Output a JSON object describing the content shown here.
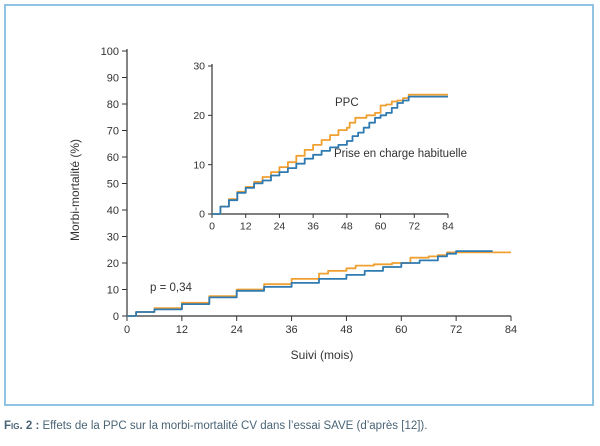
{
  "caption": {
    "label": "Fig. 2 :",
    "text": " Effets de la PPC sur la morbi-mortalité CV dans l’essai SAVE (d’après [12])."
  },
  "colors": {
    "ppc": "#f0a030",
    "usual": "#2f7ab0",
    "axis": "#333333",
    "frame": "#8fc2e3"
  },
  "chart_data": [
    {
      "type": "line",
      "ylabel": "Morbi-mortalité (%)",
      "xlabel": "Suivi (mois)",
      "xlim": [
        0,
        84
      ],
      "ylim": [
        0,
        100
      ],
      "xticks": [
        "0",
        "12",
        "24",
        "36",
        "48",
        "60",
        "72",
        "84"
      ],
      "yticks": [
        "0",
        "10",
        "20",
        "30",
        "40",
        "50",
        "60",
        "70",
        "80",
        "90",
        "100"
      ],
      "annotation": "p = 0,34",
      "series": [
        {
          "name": "PPC",
          "color": "#f0a030",
          "points": [
            [
              0,
              0
            ],
            [
              2,
              1.5
            ],
            [
              6,
              3
            ],
            [
              12,
              5
            ],
            [
              18,
              7.5
            ],
            [
              24,
              10
            ],
            [
              30,
              12
            ],
            [
              36,
              14
            ],
            [
              42,
              16
            ],
            [
              44,
              17
            ],
            [
              48,
              18
            ],
            [
              50,
              19
            ],
            [
              54,
              19.5
            ],
            [
              58,
              20
            ],
            [
              62,
              22
            ],
            [
              66,
              22.5
            ],
            [
              68,
              23
            ],
            [
              70,
              24
            ],
            [
              76,
              24
            ],
            [
              80,
              24
            ],
            [
              84,
              24
            ]
          ]
        },
        {
          "name": "Prise en charge habituelle",
          "color": "#2f7ab0",
          "points": [
            [
              0,
              0
            ],
            [
              2,
              1.5
            ],
            [
              6,
              2.5
            ],
            [
              12,
              4.5
            ],
            [
              18,
              7
            ],
            [
              24,
              9.5
            ],
            [
              30,
              11
            ],
            [
              36,
              12.5
            ],
            [
              42,
              14
            ],
            [
              48,
              15.5
            ],
            [
              52,
              17
            ],
            [
              56,
              18.5
            ],
            [
              60,
              20
            ],
            [
              64,
              21
            ],
            [
              68,
              22.5
            ],
            [
              70,
              23.5
            ],
            [
              72,
              24.5
            ],
            [
              76,
              24.5
            ],
            [
              80,
              24.5
            ]
          ]
        }
      ]
    },
    {
      "type": "line",
      "xlim": [
        0,
        84
      ],
      "ylim": [
        0,
        30
      ],
      "xticks": [
        "0",
        "12",
        "24",
        "36",
        "48",
        "60",
        "72",
        "84"
      ],
      "yticks": [
        "0",
        "10",
        "20",
        "30"
      ],
      "series": [
        {
          "name": "PPC",
          "color": "#f0a030",
          "points": [
            [
              0,
              0
            ],
            [
              3,
              1.5
            ],
            [
              6,
              3
            ],
            [
              9,
              4.5
            ],
            [
              12,
              5.5
            ],
            [
              15,
              6.5
            ],
            [
              18,
              7.5
            ],
            [
              21,
              8.5
            ],
            [
              24,
              9.5
            ],
            [
              27,
              10.5
            ],
            [
              30,
              11.8
            ],
            [
              33,
              13
            ],
            [
              36,
              14
            ],
            [
              39,
              15
            ],
            [
              42,
              16
            ],
            [
              45,
              17
            ],
            [
              48,
              17.5
            ],
            [
              49,
              18.5
            ],
            [
              51,
              19.5
            ],
            [
              53,
              19.5
            ],
            [
              55,
              20
            ],
            [
              58,
              20.5
            ],
            [
              60,
              22
            ],
            [
              62,
              22.2
            ],
            [
              64,
              22.8
            ],
            [
              66,
              23
            ],
            [
              68,
              23.5
            ],
            [
              70,
              24.2
            ],
            [
              72,
              24.2
            ],
            [
              84,
              24.2
            ]
          ]
        },
        {
          "name": "Prise en charge habituelle",
          "color": "#2f7ab0",
          "points": [
            [
              0,
              0
            ],
            [
              3,
              1.5
            ],
            [
              6,
              2.8
            ],
            [
              9,
              4.3
            ],
            [
              12,
              5.3
            ],
            [
              15,
              6.2
            ],
            [
              18,
              6.8
            ],
            [
              21,
              7.8
            ],
            [
              24,
              8.5
            ],
            [
              27,
              9.3
            ],
            [
              30,
              10.2
            ],
            [
              33,
              11.2
            ],
            [
              36,
              12
            ],
            [
              39,
              12.8
            ],
            [
              42,
              13.5
            ],
            [
              45,
              14
            ],
            [
              48,
              14.8
            ],
            [
              50,
              15.8
            ],
            [
              52,
              16.5
            ],
            [
              54,
              17.5
            ],
            [
              56,
              18.5
            ],
            [
              58,
              19.5
            ],
            [
              60,
              20
            ],
            [
              62,
              20.5
            ],
            [
              64,
              21.5
            ],
            [
              66,
              22.5
            ],
            [
              68,
              23
            ],
            [
              70,
              23.8
            ],
            [
              72,
              23.8
            ],
            [
              84,
              23.8
            ]
          ]
        }
      ],
      "series_labels": [
        "PPC",
        "Prise en charge habituelle"
      ]
    }
  ]
}
